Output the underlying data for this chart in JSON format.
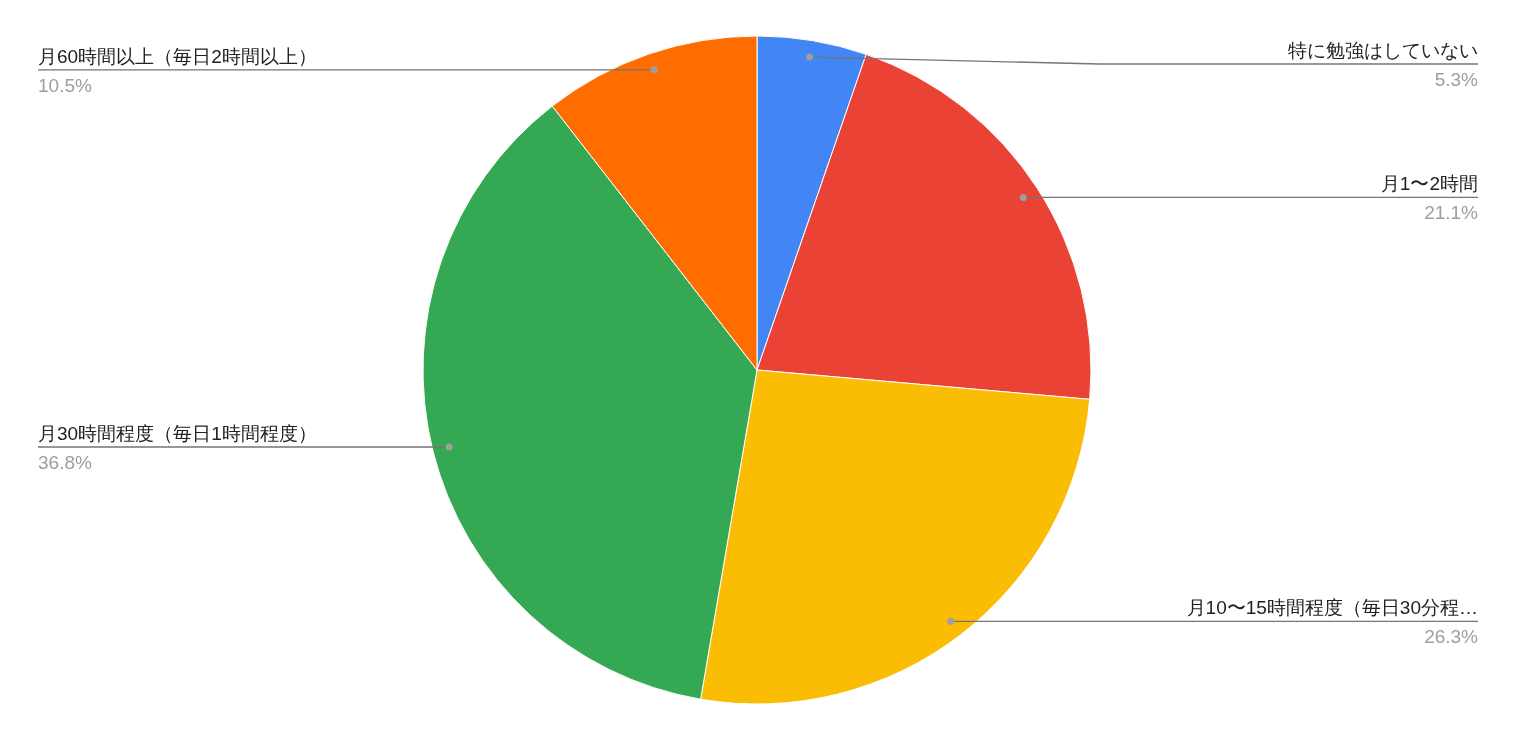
{
  "chart_data": {
    "type": "pie",
    "categories": [
      "特に勉強はしていない",
      "月1〜2時間",
      "月10〜15時間程度（毎日30分程…",
      "月30時間程度（毎日1時間程度）",
      "月60時間以上（毎日2時間以上）"
    ],
    "values": [
      5.3,
      21.1,
      26.3,
      36.8,
      10.5
    ],
    "value_labels": [
      "5.3%",
      "21.1%",
      "26.3%",
      "36.8%",
      "10.5%"
    ],
    "colors": [
      "#4285f4",
      "#ea4335",
      "#fbbc04",
      "#34a853",
      "#ff6d01"
    ]
  }
}
